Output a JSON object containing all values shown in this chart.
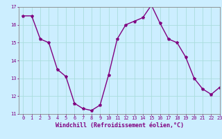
{
  "x": [
    0,
    1,
    2,
    3,
    4,
    5,
    6,
    7,
    8,
    9,
    10,
    11,
    12,
    13,
    14,
    15,
    16,
    17,
    18,
    19,
    20,
    21,
    22,
    23
  ],
  "y": [
    16.5,
    16.5,
    15.2,
    15.0,
    13.5,
    13.1,
    11.6,
    11.3,
    11.2,
    11.5,
    13.2,
    15.2,
    16.0,
    16.2,
    16.4,
    17.1,
    16.1,
    15.2,
    15.0,
    14.2,
    13.0,
    12.4,
    12.1,
    12.5
  ],
  "line_color": "#800080",
  "marker": "*",
  "marker_size": 3,
  "bg_color": "#cceeff",
  "grid_color": "#aadddd",
  "xlabel": "Windchill (Refroidissement éolien,°C)",
  "xlabel_color": "#800080",
  "ylim": [
    11,
    17
  ],
  "xlim": [
    -0.5,
    23
  ],
  "yticks": [
    11,
    12,
    13,
    14,
    15,
    16,
    17
  ],
  "xticks": [
    0,
    1,
    2,
    3,
    4,
    5,
    6,
    7,
    8,
    9,
    10,
    11,
    12,
    13,
    14,
    15,
    16,
    17,
    18,
    19,
    20,
    21,
    22,
    23
  ],
  "tick_color": "#800080",
  "tick_fontsize": 5.0,
  "xlabel_fontsize": 6.0,
  "linewidth": 1.0,
  "spine_color": "#888888"
}
